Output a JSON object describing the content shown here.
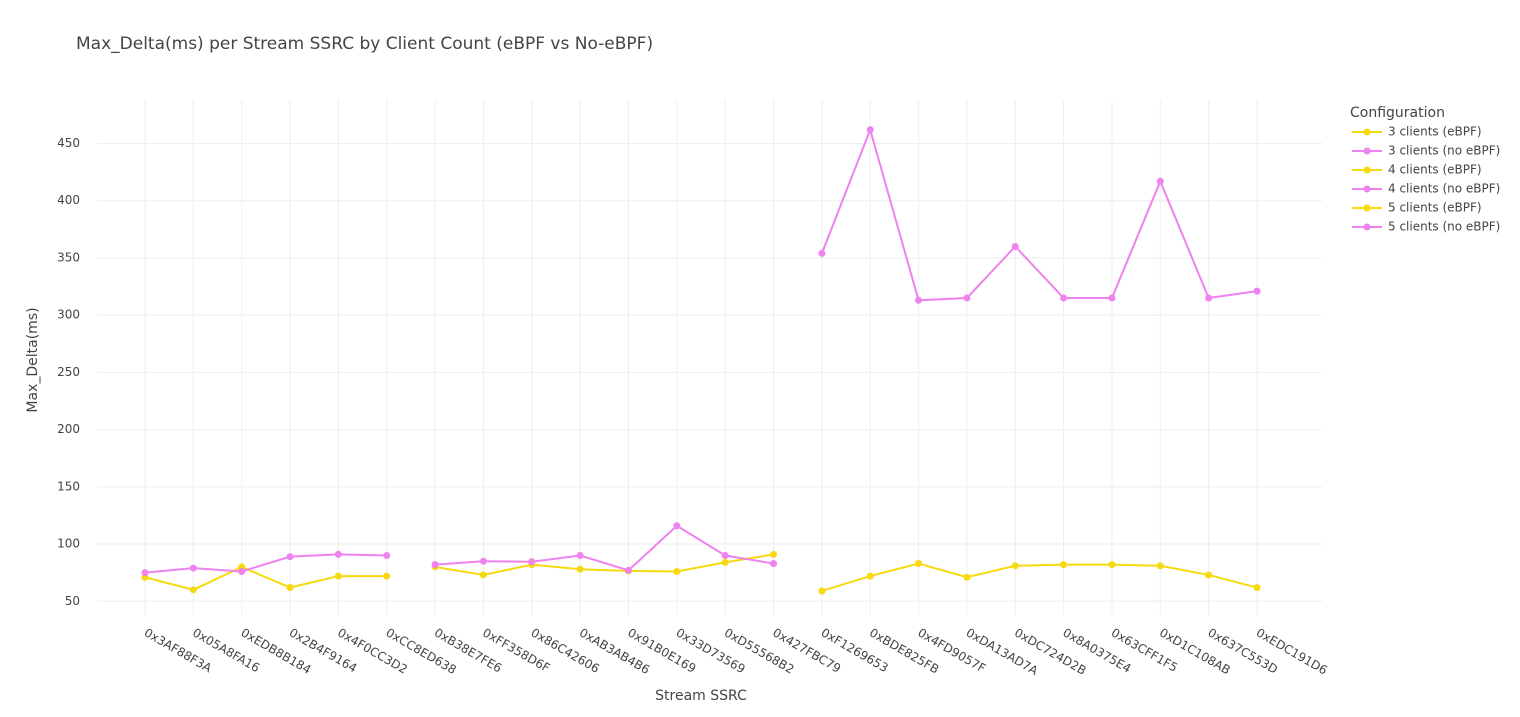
{
  "chart_data": {
    "type": "line",
    "title": "Max_Delta(ms) per Stream SSRC by Client Count (eBPF vs No-eBPF)",
    "x_label": "Stream SSRC",
    "y_label": "Max_Delta(ms)",
    "legend_title": "Configuration",
    "categories": [
      "0x3AF88F3A",
      "0x05A8FA16",
      "0xEDB8B184",
      "0x2B4F9164",
      "0x4F0CC3D2",
      "0xCC8ED638",
      "0xB38E7FE6",
      "0xFF358D6F",
      "0x86C42606",
      "0xAB3AB4B6",
      "0x91B0E169",
      "0x33D73569",
      "0xD55568B2",
      "0x427FBC79",
      "0xF1269653",
      "0xBDE825FB",
      "0x4FD9057F",
      "0xDA13AD7A",
      "0xDC724D2B",
      "0x8A0375E4",
      "0x63CFF1F5",
      "0xD1C108AB",
      "0x637C553D",
      "0xEDC191D6"
    ],
    "series": [
      {
        "name": "3 clients (eBPF)",
        "color": "#f7d90f",
        "values": [
          71,
          60,
          80,
          62,
          72,
          72,
          null,
          null,
          null,
          null,
          null,
          null,
          null,
          null,
          null,
          null,
          null,
          null,
          null,
          null,
          null,
          null,
          null,
          null
        ]
      },
      {
        "name": "3 clients (no eBPF)",
        "color": "#ee82ee",
        "values": [
          75,
          79,
          76,
          89,
          91,
          90,
          null,
          null,
          null,
          null,
          null,
          null,
          null,
          null,
          null,
          null,
          null,
          null,
          null,
          null,
          null,
          null,
          null,
          null
        ]
      },
      {
        "name": "4 clients (eBPF)",
        "color": "#f7d90f",
        "values": [
          null,
          null,
          null,
          null,
          null,
          null,
          80,
          73,
          82,
          78,
          76.5,
          76,
          84,
          91,
          null,
          null,
          null,
          null,
          null,
          null,
          null,
          null,
          null,
          null
        ]
      },
      {
        "name": "4 clients (no eBPF)",
        "color": "#ee82ee",
        "values": [
          null,
          null,
          null,
          null,
          null,
          null,
          82,
          85,
          84.5,
          90,
          77,
          116,
          90,
          83,
          null,
          null,
          null,
          null,
          null,
          null,
          null,
          null,
          null,
          null
        ]
      },
      {
        "name": "5 clients (eBPF)",
        "color": "#f7d90f",
        "values": [
          null,
          null,
          null,
          null,
          null,
          null,
          null,
          null,
          null,
          null,
          null,
          null,
          null,
          null,
          59,
          72,
          83,
          71,
          81,
          82,
          82,
          81,
          73,
          62
        ]
      },
      {
        "name": "5 clients (no eBPF)",
        "color": "#ee82ee",
        "values": [
          null,
          null,
          null,
          null,
          null,
          null,
          null,
          null,
          null,
          null,
          null,
          null,
          null,
          null,
          354,
          462,
          313,
          315,
          360,
          315,
          315,
          417,
          315,
          321
        ]
      }
    ],
    "ylim": [
      38,
      488
    ],
    "yticks": [
      50,
      100,
      150,
      200,
      250,
      300,
      350,
      400,
      450
    ],
    "grid": true
  }
}
